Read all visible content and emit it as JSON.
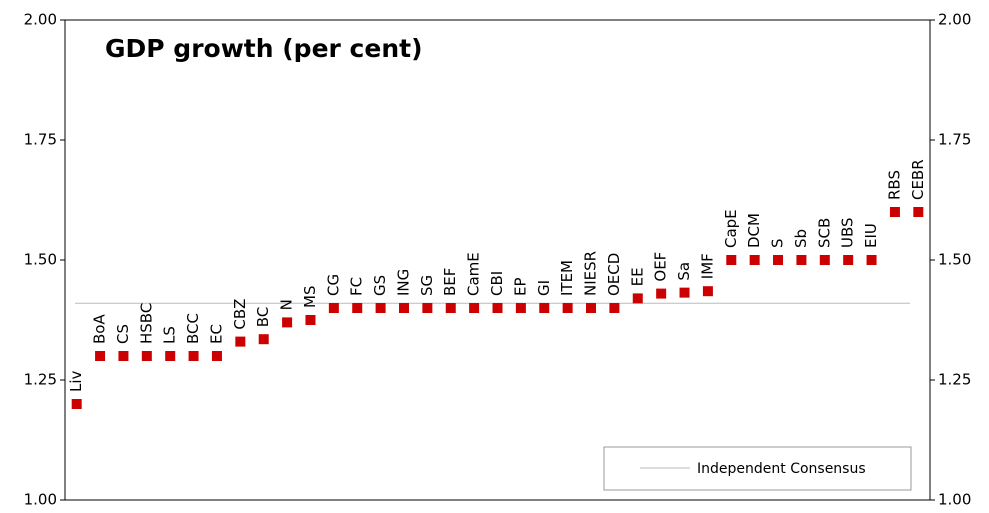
{
  "chart_data": {
    "type": "scatter",
    "title": "GDP growth (per cent)",
    "categories": [
      "Liv",
      "BoA",
      "CS",
      "HSBC",
      "LS",
      "BCC",
      "EC",
      "CBZ",
      "BC",
      "N",
      "MS",
      "CG",
      "FC",
      "GS",
      "ING",
      "SG",
      "BEF",
      "CamE",
      "CBI",
      "EP",
      "GI",
      "ITEM",
      "NIESR",
      "OECD",
      "EE",
      "OEF",
      "Sa",
      "IMF",
      "CapE",
      "DCM",
      "S",
      "Sb",
      "SCB",
      "UBS",
      "EIU",
      "RBS",
      "CEBR"
    ],
    "values": [
      1.2,
      1.3,
      1.3,
      1.3,
      1.3,
      1.3,
      1.3,
      1.33,
      1.335,
      1.37,
      1.375,
      1.4,
      1.4,
      1.4,
      1.4,
      1.4,
      1.4,
      1.4,
      1.4,
      1.4,
      1.4,
      1.4,
      1.4,
      1.4,
      1.42,
      1.43,
      1.432,
      1.435,
      1.5,
      1.5,
      1.5,
      1.5,
      1.5,
      1.5,
      1.5,
      1.6,
      1.6
    ],
    "color": "#cc0000",
    "reference_line": {
      "name": "Independent Consensus",
      "value": 1.41,
      "color": "#bbbbbb"
    },
    "ylim": [
      1.0,
      2.0
    ],
    "yticks": [
      {
        "value": 1.0,
        "label": "1.00"
      },
      {
        "value": 1.25,
        "label": "1.25"
      },
      {
        "value": 1.5,
        "label": "1.50"
      },
      {
        "value": 1.75,
        "label": "1.75"
      },
      {
        "value": 2.0,
        "label": "2.00"
      }
    ],
    "y2lim": [
      1.0,
      2.0
    ],
    "y2ticks": [
      {
        "value": 1.0,
        "label": "1.00"
      },
      {
        "value": 1.25,
        "label": "1.25"
      },
      {
        "value": 1.5,
        "label": "1.50"
      },
      {
        "value": 1.75,
        "label": "1.75"
      },
      {
        "value": 2.0,
        "label": "2.00"
      }
    ],
    "legend": "bottom-right"
  }
}
